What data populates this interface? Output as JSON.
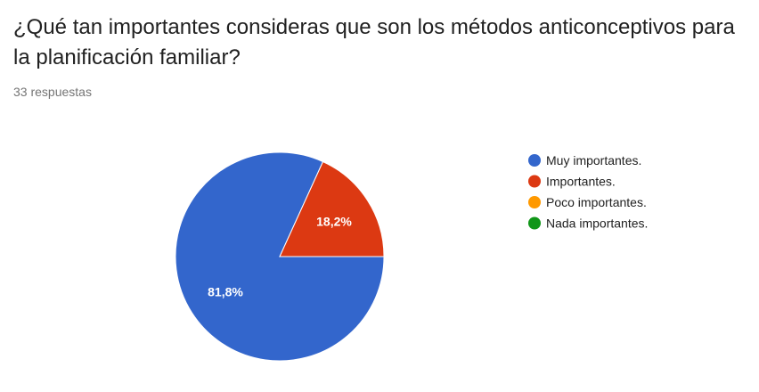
{
  "question": "¿Qué tan importantes consideras que son los métodos anticonceptivos para la planificación familiar?",
  "response_count": "33 respuestas",
  "chart_data": {
    "type": "pie",
    "title": "",
    "categories": [
      "Muy importantes.",
      "Importantes.",
      "Poco importantes.",
      "Nada importantes."
    ],
    "values": [
      81.8,
      18.2,
      0,
      0
    ],
    "value_labels": [
      "81,8%",
      "18,2%",
      "",
      ""
    ],
    "colors": [
      "#3366cc",
      "#dc3912",
      "#ff9900",
      "#109618"
    ],
    "legend_position": "right"
  }
}
